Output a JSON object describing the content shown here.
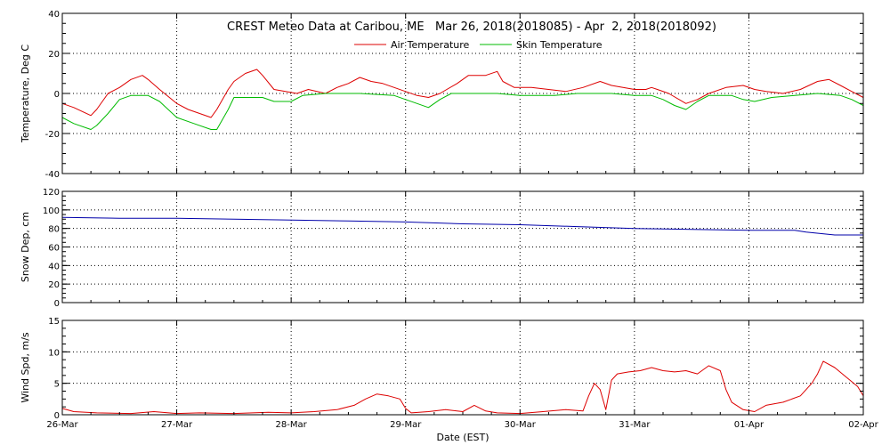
{
  "title": "CREST Meteo Data at Caribou, ME   Mar 26, 2018(2018085) - Apr  2, 2018(2018092)",
  "xlabel": "Date (EST)",
  "x_ticks": [
    "26-Mar",
    "27-Mar",
    "28-Mar",
    "29-Mar",
    "30-Mar",
    "31-Mar",
    "01-Apr",
    "02-Apr"
  ],
  "colors": {
    "air": "#dd0000",
    "skin": "#00bb00",
    "snow": "#0000aa",
    "wind": "#dd0000"
  },
  "chart_data": [
    {
      "type": "line",
      "ylabel": "Temperature, Deg C",
      "ylim": [
        -40,
        40
      ],
      "yticks": [
        -40,
        -20,
        0,
        20,
        40
      ],
      "xlim": [
        0,
        7
      ],
      "grid": true,
      "legend": "top-center",
      "series": [
        {
          "name": "Air Temperature",
          "color": "#dd0000",
          "points": [
            [
              0,
              -5
            ],
            [
              0.1,
              -7
            ],
            [
              0.25,
              -11
            ],
            [
              0.3,
              -8
            ],
            [
              0.4,
              0
            ],
            [
              0.5,
              3
            ],
            [
              0.6,
              7
            ],
            [
              0.7,
              9
            ],
            [
              0.75,
              7
            ],
            [
              0.85,
              2
            ],
            [
              1.0,
              -5
            ],
            [
              1.1,
              -8
            ],
            [
              1.2,
              -10
            ],
            [
              1.3,
              -12
            ],
            [
              1.35,
              -8
            ],
            [
              1.45,
              2
            ],
            [
              1.5,
              6
            ],
            [
              1.6,
              10
            ],
            [
              1.7,
              12
            ],
            [
              1.75,
              9
            ],
            [
              1.85,
              2
            ],
            [
              1.95,
              1
            ],
            [
              2.05,
              0
            ],
            [
              2.15,
              2
            ],
            [
              2.3,
              0
            ],
            [
              2.4,
              3
            ],
            [
              2.5,
              5
            ],
            [
              2.6,
              8
            ],
            [
              2.7,
              6
            ],
            [
              2.8,
              5
            ],
            [
              2.9,
              3
            ],
            [
              3.0,
              1
            ],
            [
              3.1,
              -1
            ],
            [
              3.2,
              -2
            ],
            [
              3.3,
              0
            ],
            [
              3.45,
              5
            ],
            [
              3.55,
              9
            ],
            [
              3.7,
              9
            ],
            [
              3.8,
              11
            ],
            [
              3.85,
              6
            ],
            [
              3.95,
              3
            ],
            [
              4.1,
              3
            ],
            [
              4.25,
              2
            ],
            [
              4.4,
              1
            ],
            [
              4.55,
              3
            ],
            [
              4.7,
              6
            ],
            [
              4.8,
              4
            ],
            [
              4.9,
              3
            ],
            [
              5.0,
              2
            ],
            [
              5.1,
              2
            ],
            [
              5.15,
              3
            ],
            [
              5.2,
              2
            ],
            [
              5.3,
              0
            ],
            [
              5.45,
              -5
            ],
            [
              5.55,
              -3
            ],
            [
              5.65,
              0
            ],
            [
              5.8,
              3
            ],
            [
              5.95,
              4
            ],
            [
              6.05,
              2
            ],
            [
              6.15,
              1
            ],
            [
              6.3,
              0
            ],
            [
              6.45,
              2
            ],
            [
              6.6,
              6
            ],
            [
              6.7,
              7
            ],
            [
              6.8,
              4
            ],
            [
              6.9,
              1
            ],
            [
              7.0,
              -2
            ]
          ]
        },
        {
          "name": "Skin Temperature",
          "color": "#00bb00",
          "points": [
            [
              0,
              -12
            ],
            [
              0.1,
              -15
            ],
            [
              0.25,
              -18
            ],
            [
              0.3,
              -16
            ],
            [
              0.4,
              -10
            ],
            [
              0.5,
              -3
            ],
            [
              0.6,
              -1
            ],
            [
              0.75,
              -1
            ],
            [
              0.85,
              -4
            ],
            [
              1.0,
              -12
            ],
            [
              1.15,
              -15
            ],
            [
              1.3,
              -18
            ],
            [
              1.35,
              -18
            ],
            [
              1.45,
              -8
            ],
            [
              1.5,
              -2
            ],
            [
              1.6,
              -2
            ],
            [
              1.75,
              -2
            ],
            [
              1.85,
              -4
            ],
            [
              2.0,
              -4
            ],
            [
              2.1,
              -1
            ],
            [
              2.3,
              0
            ],
            [
              2.6,
              0
            ],
            [
              2.9,
              -1
            ],
            [
              3.0,
              -3
            ],
            [
              3.1,
              -5
            ],
            [
              3.2,
              -7
            ],
            [
              3.3,
              -3
            ],
            [
              3.4,
              0
            ],
            [
              3.7,
              0
            ],
            [
              3.8,
              0
            ],
            [
              4.0,
              -1
            ],
            [
              4.3,
              -1
            ],
            [
              4.5,
              0
            ],
            [
              4.8,
              0
            ],
            [
              5.0,
              -1
            ],
            [
              5.15,
              -1
            ],
            [
              5.25,
              -3
            ],
            [
              5.35,
              -6
            ],
            [
              5.45,
              -8
            ],
            [
              5.55,
              -4
            ],
            [
              5.65,
              -1
            ],
            [
              5.85,
              -1
            ],
            [
              5.95,
              -3
            ],
            [
              6.05,
              -4
            ],
            [
              6.2,
              -2
            ],
            [
              6.4,
              -1
            ],
            [
              6.6,
              0
            ],
            [
              6.8,
              -1
            ],
            [
              6.9,
              -3
            ],
            [
              7.0,
              -6
            ]
          ]
        }
      ]
    },
    {
      "type": "line",
      "ylabel": "Snow Dep, cm",
      "ylim": [
        0,
        120
      ],
      "yticks": [
        0,
        20,
        40,
        60,
        80,
        100,
        120
      ],
      "xlim": [
        0,
        7
      ],
      "grid": true,
      "series": [
        {
          "color": "#0000aa",
          "points": [
            [
              0,
              92
            ],
            [
              0.5,
              91
            ],
            [
              1.0,
              91
            ],
            [
              1.5,
              90
            ],
            [
              2.0,
              89
            ],
            [
              2.5,
              88
            ],
            [
              3.0,
              87
            ],
            [
              3.5,
              85
            ],
            [
              4.0,
              84
            ],
            [
              4.5,
              82
            ],
            [
              5.0,
              80
            ],
            [
              5.5,
              79
            ],
            [
              6.0,
              78
            ],
            [
              6.4,
              78
            ],
            [
              6.5,
              76
            ],
            [
              6.75,
              73
            ],
            [
              7.0,
              73
            ]
          ]
        }
      ]
    },
    {
      "type": "line",
      "ylabel": "Wind Spd, m/s",
      "ylim": [
        0,
        15
      ],
      "yticks": [
        0,
        5,
        10,
        15
      ],
      "xlim": [
        0,
        7
      ],
      "grid": true,
      "series": [
        {
          "color": "#dd0000",
          "points": [
            [
              0,
              1
            ],
            [
              0.1,
              0.5
            ],
            [
              0.3,
              0.3
            ],
            [
              0.6,
              0.2
            ],
            [
              0.8,
              0.5
            ],
            [
              1.0,
              0.2
            ],
            [
              1.2,
              0.3
            ],
            [
              1.5,
              0.2
            ],
            [
              1.8,
              0.4
            ],
            [
              2.0,
              0.3
            ],
            [
              2.2,
              0.5
            ],
            [
              2.4,
              0.8
            ],
            [
              2.55,
              1.5
            ],
            [
              2.65,
              2.5
            ],
            [
              2.75,
              3.3
            ],
            [
              2.85,
              3.0
            ],
            [
              2.95,
              2.5
            ],
            [
              3.0,
              1.0
            ],
            [
              3.05,
              0.3
            ],
            [
              3.2,
              0.5
            ],
            [
              3.35,
              0.8
            ],
            [
              3.5,
              0.5
            ],
            [
              3.6,
              1.5
            ],
            [
              3.7,
              0.6
            ],
            [
              3.8,
              0.3
            ],
            [
              4.0,
              0.2
            ],
            [
              4.2,
              0.5
            ],
            [
              4.4,
              0.8
            ],
            [
              4.55,
              0.6
            ],
            [
              4.6,
              3.0
            ],
            [
              4.65,
              5.0
            ],
            [
              4.7,
              4.0
            ],
            [
              4.75,
              0.8
            ],
            [
              4.8,
              5.5
            ],
            [
              4.85,
              6.5
            ],
            [
              4.95,
              6.8
            ],
            [
              5.05,
              7.0
            ],
            [
              5.15,
              7.5
            ],
            [
              5.25,
              7.0
            ],
            [
              5.35,
              6.8
            ],
            [
              5.45,
              7.0
            ],
            [
              5.55,
              6.5
            ],
            [
              5.65,
              7.8
            ],
            [
              5.75,
              7.0
            ],
            [
              5.8,
              4.0
            ],
            [
              5.85,
              2.0
            ],
            [
              5.95,
              0.8
            ],
            [
              6.05,
              0.5
            ],
            [
              6.15,
              1.5
            ],
            [
              6.3,
              2.0
            ],
            [
              6.45,
              3.0
            ],
            [
              6.55,
              5.0
            ],
            [
              6.6,
              6.5
            ],
            [
              6.65,
              8.5
            ],
            [
              6.75,
              7.5
            ],
            [
              6.85,
              6.0
            ],
            [
              6.95,
              4.5
            ],
            [
              7.0,
              3.0
            ]
          ]
        }
      ]
    }
  ]
}
